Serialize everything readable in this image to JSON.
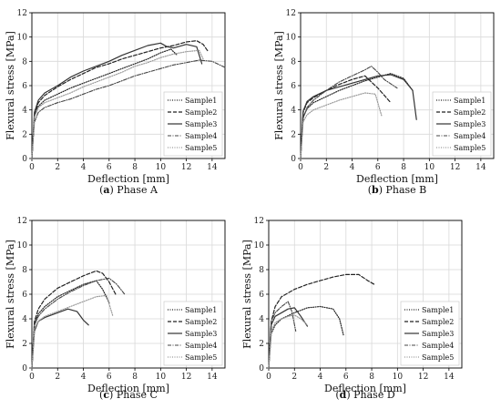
{
  "chart_data": [
    {
      "type": "line",
      "caption_label": "a",
      "caption_text": "Phase A",
      "xlabel": "Deflection [mm]",
      "ylabel": "Flexural stress [MPa]",
      "xlim": [
        0,
        15
      ],
      "ylim": [
        0,
        12
      ],
      "xticks": [
        0,
        2,
        4,
        6,
        8,
        10,
        12,
        14
      ],
      "yticks": [
        0,
        2,
        4,
        6,
        8,
        10,
        12
      ],
      "grid": true,
      "legend_position": "lower-right",
      "series": [
        {
          "name": "Sample1",
          "style": "dotted",
          "color": "#222222",
          "x": [
            0,
            0.2,
            0.5,
            1,
            2,
            3,
            4,
            5,
            6,
            7,
            8,
            9,
            10,
            10.8,
            11.3
          ],
          "y": [
            0,
            3.5,
            4.3,
            4.8,
            5.3,
            5.8,
            6.2,
            6.6,
            7.0,
            7.4,
            7.8,
            8.2,
            8.7,
            9.0,
            8.5
          ]
        },
        {
          "name": "Sample2",
          "style": "dashed",
          "color": "#222222",
          "x": [
            0,
            0.2,
            0.5,
            1,
            2,
            3,
            4,
            5,
            6,
            7,
            8,
            9,
            10,
            11,
            12,
            12.8,
            13.3,
            13.7
          ],
          "y": [
            0,
            3.6,
            4.6,
            5.2,
            5.9,
            6.5,
            7.0,
            7.5,
            7.8,
            8.2,
            8.5,
            8.8,
            9.1,
            9.3,
            9.6,
            9.7,
            9.4,
            8.8
          ]
        },
        {
          "name": "Sample3",
          "style": "solid",
          "color": "#333333",
          "x": [
            0,
            0.2,
            0.5,
            1,
            2,
            3,
            4,
            5,
            6,
            7,
            8,
            9,
            10,
            10.5,
            11,
            12,
            12.8,
            13.2
          ],
          "y": [
            0,
            3.8,
            4.8,
            5.4,
            6.0,
            6.7,
            7.2,
            7.6,
            8.0,
            8.5,
            8.9,
            9.3,
            9.5,
            9.2,
            9.1,
            9.4,
            9.2,
            7.8
          ]
        },
        {
          "name": "Sample4",
          "style": "dashdot",
          "color": "#444444",
          "x": [
            0,
            0.2,
            0.5,
            1,
            2,
            3,
            4,
            5,
            6,
            7,
            8,
            9,
            10,
            11,
            12,
            13,
            14,
            15
          ],
          "y": [
            0,
            3.0,
            3.8,
            4.2,
            4.6,
            4.9,
            5.3,
            5.7,
            6.0,
            6.4,
            6.8,
            7.1,
            7.4,
            7.7,
            7.9,
            8.1,
            8.0,
            7.5
          ]
        },
        {
          "name": "Sample5",
          "style": "dotted-light",
          "color": "#999999",
          "x": [
            0,
            0.2,
            0.5,
            1,
            2,
            3,
            4,
            5,
            6,
            7,
            8,
            9,
            10,
            11,
            12,
            13,
            13.3
          ],
          "y": [
            0,
            3.4,
            4.2,
            4.6,
            5.0,
            5.4,
            5.9,
            6.3,
            6.7,
            7.1,
            7.6,
            7.9,
            8.3,
            8.6,
            8.8,
            8.9,
            8.2
          ]
        }
      ]
    },
    {
      "type": "line",
      "caption_label": "b",
      "caption_text": "Phase B",
      "xlabel": "Deflection [mm]",
      "ylabel": "Flexural stress [MPa]",
      "xlim": [
        0,
        15
      ],
      "ylim": [
        0,
        12
      ],
      "xticks": [
        0,
        2,
        4,
        6,
        8,
        10,
        12,
        14
      ],
      "yticks": [
        0,
        2,
        4,
        6,
        8,
        10,
        12
      ],
      "grid": true,
      "legend_position": "lower-right",
      "series": [
        {
          "name": "Sample1",
          "style": "dotted",
          "color": "#222222",
          "x": [
            0,
            0.2,
            0.5,
            1,
            2,
            3,
            4,
            5,
            6,
            7,
            8,
            8.7
          ],
          "y": [
            0,
            3.4,
            4.1,
            4.6,
            5.1,
            5.6,
            6.0,
            6.4,
            6.7,
            7.0,
            6.6,
            5.6
          ]
        },
        {
          "name": "Sample2",
          "style": "dashed",
          "color": "#222222",
          "x": [
            0,
            0.2,
            0.5,
            1,
            2,
            3,
            4,
            5,
            5.5,
            6,
            6.5,
            7
          ],
          "y": [
            0,
            3.8,
            4.6,
            5.0,
            5.6,
            6.1,
            6.5,
            6.8,
            6.3,
            5.8,
            5.2,
            4.6
          ]
        },
        {
          "name": "Sample3",
          "style": "solid",
          "color": "#333333",
          "x": [
            0,
            0.2,
            0.5,
            1,
            2,
            3,
            4,
            5,
            6,
            7,
            8,
            8.7,
            9.0
          ],
          "y": [
            0,
            3.9,
            4.7,
            5.1,
            5.6,
            5.9,
            6.2,
            6.5,
            6.8,
            6.9,
            6.5,
            5.6,
            3.2
          ]
        },
        {
          "name": "Sample4",
          "style": "dashdot",
          "color": "#444444",
          "x": [
            0,
            0.2,
            0.5,
            1,
            2,
            3,
            4,
            5,
            5.5,
            6,
            6.5,
            7.5
          ],
          "y": [
            0,
            3.3,
            4.2,
            4.8,
            5.6,
            6.3,
            6.8,
            7.3,
            7.6,
            7.1,
            6.5,
            5.8
          ]
        },
        {
          "name": "Sample5",
          "style": "dotted-light",
          "color": "#999999",
          "x": [
            0,
            0.2,
            0.5,
            1,
            2,
            3,
            4,
            5,
            5.8,
            6.3
          ],
          "y": [
            0,
            3.0,
            3.6,
            4.0,
            4.4,
            4.8,
            5.1,
            5.4,
            5.3,
            3.5
          ]
        }
      ]
    },
    {
      "type": "line",
      "caption_label": "c",
      "caption_text": "Phase C",
      "xlabel": "Deflection [mm]",
      "ylabel": "Flexural stress [MPa]",
      "xlim": [
        0,
        15
      ],
      "ylim": [
        0,
        12
      ],
      "xticks": [
        0,
        2,
        4,
        6,
        8,
        10,
        12,
        14
      ],
      "yticks": [
        0,
        2,
        4,
        6,
        8,
        10,
        12
      ],
      "grid": true,
      "legend_position": "lower-right",
      "series": [
        {
          "name": "Sample1",
          "style": "dotted",
          "color": "#222222",
          "x": [
            0,
            0.2,
            0.5,
            1,
            2,
            3,
            4,
            5,
            5.5,
            6
          ],
          "y": [
            0,
            3.6,
            4.4,
            5.0,
            5.8,
            6.3,
            6.8,
            7.1,
            6.4,
            5.3
          ]
        },
        {
          "name": "Sample2",
          "style": "dashed",
          "color": "#222222",
          "x": [
            0,
            0.2,
            0.5,
            1,
            2,
            3,
            4,
            5,
            5.5,
            6,
            6.5
          ],
          "y": [
            0,
            3.8,
            4.8,
            5.6,
            6.5,
            7.0,
            7.5,
            7.9,
            7.7,
            7.0,
            6.0
          ]
        },
        {
          "name": "Sample3",
          "style": "solid",
          "color": "#333333",
          "x": [
            0,
            0.2,
            0.5,
            1,
            2,
            2.8,
            3.5,
            4.0,
            4.4
          ],
          "y": [
            0,
            3.0,
            3.8,
            4.1,
            4.5,
            4.8,
            4.6,
            3.9,
            3.5
          ]
        },
        {
          "name": "Sample4",
          "style": "dashdot",
          "color": "#444444",
          "x": [
            0,
            0.2,
            0.5,
            1,
            2,
            3,
            4,
            5,
            6,
            6.6,
            7.2
          ],
          "y": [
            0,
            3.5,
            4.2,
            4.8,
            5.6,
            6.2,
            6.7,
            7.1,
            7.3,
            6.8,
            6.0
          ]
        },
        {
          "name": "Sample5",
          "style": "dotted-light",
          "color": "#999999",
          "x": [
            0,
            0.2,
            0.5,
            1,
            2,
            3,
            4,
            5,
            5.8,
            6.3
          ],
          "y": [
            0,
            3.2,
            3.8,
            4.2,
            4.6,
            5.0,
            5.4,
            5.8,
            5.9,
            4.2
          ]
        }
      ]
    },
    {
      "type": "line",
      "caption_label": "d",
      "caption_text": "Phase D",
      "xlabel": "Deflection [mm]",
      "ylabel": "Flexural stress [MPa]",
      "xlim": [
        0,
        15
      ],
      "ylim": [
        0,
        12
      ],
      "xticks": [
        0,
        2,
        4,
        6,
        8,
        10,
        12,
        14
      ],
      "yticks": [
        0,
        2,
        4,
        6,
        8,
        10,
        12
      ],
      "grid": true,
      "legend_position": "lower-right",
      "series": [
        {
          "name": "Sample1",
          "style": "dotted",
          "color": "#222222",
          "x": [
            0,
            0.2,
            0.5,
            1,
            2,
            3,
            4,
            5,
            5.5,
            5.8
          ],
          "y": [
            0,
            2.8,
            3.5,
            4.0,
            4.5,
            4.9,
            5.0,
            4.8,
            4.0,
            2.7
          ]
        },
        {
          "name": "Sample2",
          "style": "dashed",
          "color": "#222222",
          "x": [
            0,
            0.2,
            0.5,
            1,
            2,
            3,
            4,
            5,
            6,
            7,
            7.7,
            8.2
          ],
          "y": [
            0,
            3.8,
            5.0,
            5.8,
            6.4,
            6.8,
            7.1,
            7.4,
            7.6,
            7.6,
            7.1,
            6.8
          ]
        },
        {
          "name": "Sample3",
          "style": "solid",
          "color": "#333333",
          "x": [
            0,
            0.2,
            0.5,
            1,
            1.5,
            2,
            2.5,
            3
          ],
          "y": [
            0,
            3.5,
            4.2,
            4.5,
            4.8,
            4.9,
            4.2,
            3.4
          ]
        },
        {
          "name": "Sample4",
          "style": "dashdot",
          "color": "#444444",
          "x": [
            0,
            0.2,
            0.5,
            1,
            1.5,
            1.8,
            2.1
          ],
          "y": [
            0,
            3.8,
            4.5,
            5.0,
            5.4,
            4.6,
            3.0
          ]
        },
        {
          "name": "Sample5",
          "style": "dotted-light",
          "color": "#999999",
          "x": [
            0,
            0.2,
            0.5,
            1,
            1.5,
            2,
            2.5,
            3
          ],
          "y": [
            0,
            3.0,
            3.7,
            4.0,
            4.2,
            4.3,
            4.0,
            3.5
          ]
        }
      ]
    }
  ]
}
